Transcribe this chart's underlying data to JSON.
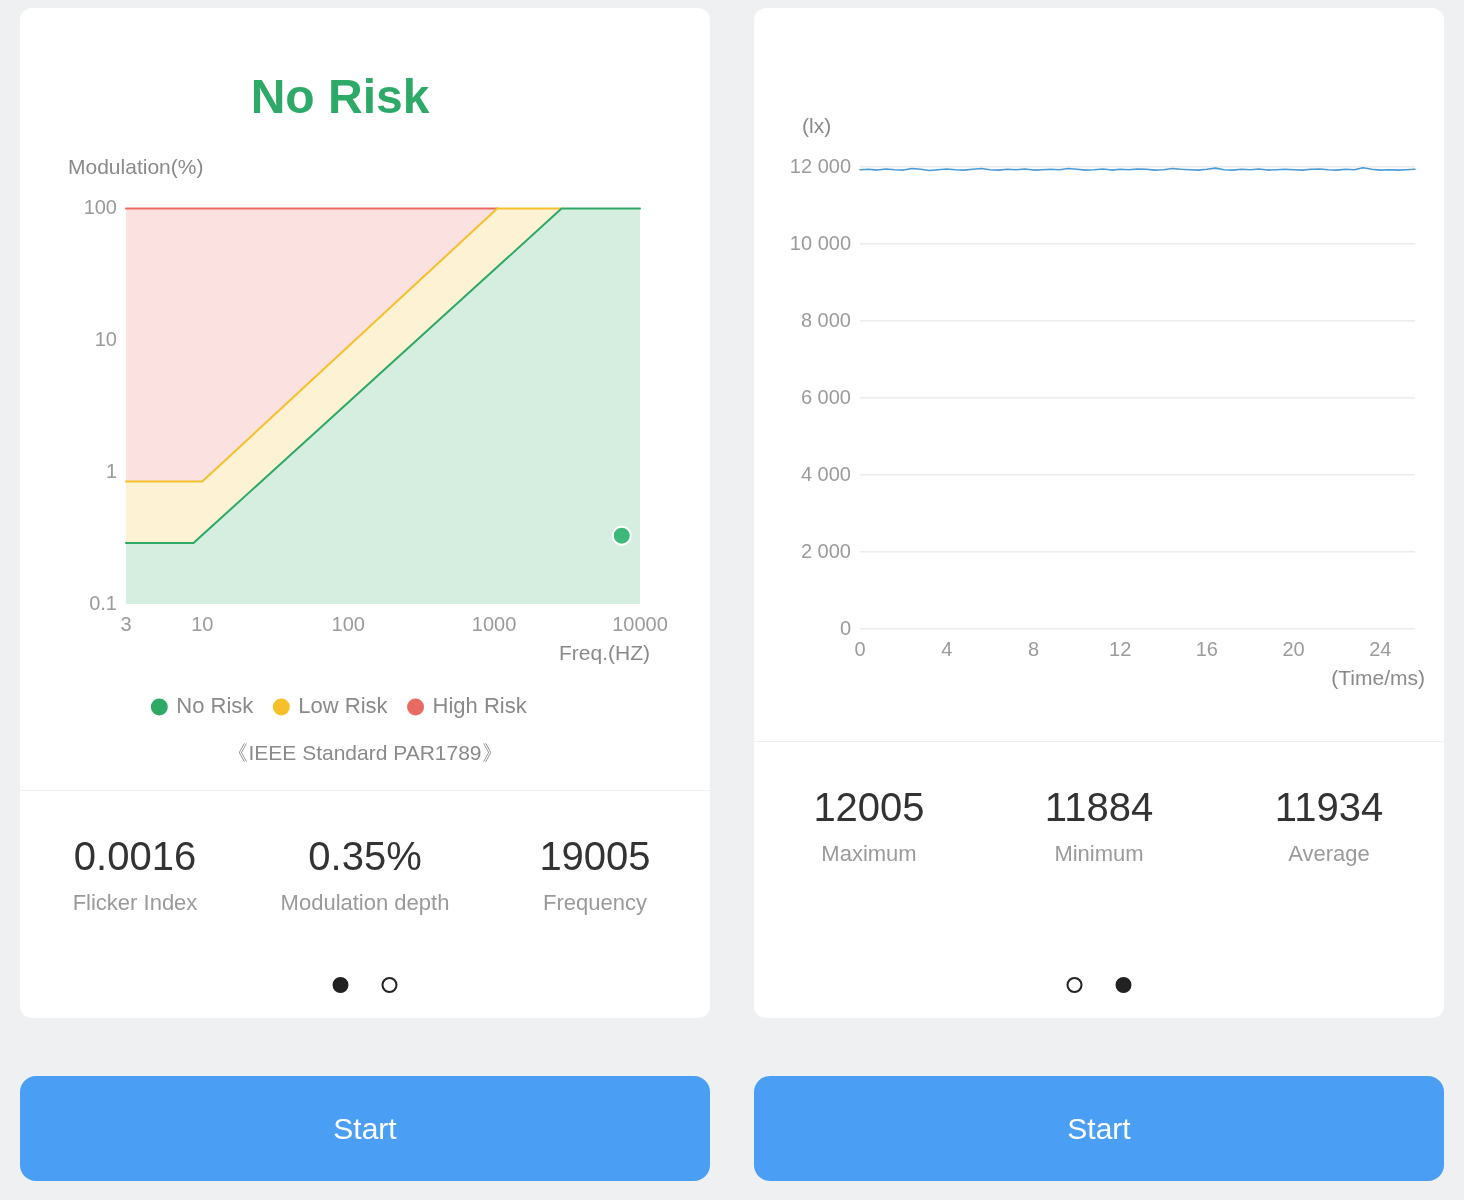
{
  "chart_data": [
    {
      "type": "area",
      "title": "No Risk",
      "xlabel": "Freq.(HZ)",
      "ylabel": "Modulation(%)",
      "annotations": [
        "《IEEE Standard PAR1789》"
      ],
      "series": [
        {
          "name": "No Risk",
          "color": "#2ea866",
          "x": [
            3,
            8.7,
            2900,
            10000
          ],
          "values": [
            0.29,
            0.29,
            100,
            100
          ]
        },
        {
          "name": "Low Risk",
          "color": "#f5c02a",
          "x": [
            3,
            10,
            1050,
            2900
          ],
          "values": [
            0.85,
            0.85,
            100,
            100
          ]
        },
        {
          "name": "High Risk",
          "color": "#e96a62",
          "x": [
            3,
            1050
          ],
          "values": [
            100,
            100
          ]
        },
        {
          "type": "scatter",
          "color": "#3cb878",
          "marker": "circle",
          "x": [
            7500
          ],
          "values": [
            0.33
          ]
        }
      ],
      "xlim": [
        3,
        10000
      ],
      "ylim": [
        0.1,
        100
      ],
      "xticks": [
        3,
        10,
        100,
        1000,
        10000
      ],
      "yticks": [
        0.1,
        1,
        10,
        100
      ],
      "log": "xy",
      "grid": true,
      "legend": "bottom"
    },
    {
      "type": "other",
      "annotations": [
        "0.0016",
        "Flicker Index",
        "0.35%",
        "Modulation depth",
        "19005",
        "Frequency",
        "Start"
      ]
    },
    {
      "type": "line",
      "xlabel": "(Time/ms)",
      "ylabel": "(lx)",
      "series": [
        {
          "color": "#4a9ad8",
          "x": [
            0,
            0.4,
            0.8,
            1.2,
            1.6,
            2,
            2.4,
            2.8,
            3.2,
            3.6,
            4,
            4.4,
            4.8,
            5.2,
            5.6,
            6,
            6.4,
            6.8,
            7.2,
            7.6,
            8,
            8.4,
            8.8,
            9.2,
            9.6,
            10,
            10.4,
            10.8,
            11.2,
            11.6,
            12,
            12.4,
            12.8,
            13.2,
            13.6,
            14,
            14.4,
            14.8,
            15.2,
            15.6,
            16,
            16.4,
            16.8,
            17.2,
            17.6,
            18,
            18.4,
            18.8,
            19.2,
            19.6,
            20,
            20.4,
            20.8,
            21.2,
            21.6,
            22,
            22.4,
            22.8,
            23.2,
            23.6,
            24,
            24.4,
            24.8,
            25.2,
            25.6
          ],
          "values": [
            11930,
            11940,
            11920,
            11950,
            11930,
            11920,
            11960,
            11940,
            11910,
            11930,
            11950,
            11930,
            11920,
            11940,
            11960,
            11930,
            11920,
            11940,
            11930,
            11950,
            11920,
            11930,
            11940,
            11930,
            11960,
            11940,
            11920,
            11930,
            11950,
            11920,
            11940,
            11930,
            11950,
            11940,
            11920,
            11930,
            11960,
            11940,
            11930,
            11920,
            11940,
            11970,
            11930,
            11920,
            11940,
            11930,
            11950,
            11920,
            11930,
            11940,
            11930,
            11920,
            11940,
            11950,
            11930,
            11920,
            11940,
            11930,
            11980,
            11940,
            11920,
            11930,
            11920,
            11930,
            11940
          ]
        }
      ],
      "xlim": [
        0,
        25.6
      ],
      "ylim": [
        0,
        12000
      ],
      "xticks": [
        0,
        4,
        8,
        12,
        16,
        20,
        24
      ],
      "yticks": [
        0,
        {
          "value": 2000,
          "label": "2 000"
        },
        {
          "value": 4000,
          "label": "4 000"
        },
        {
          "value": 6000,
          "label": "6 000"
        },
        {
          "value": 8000,
          "label": "8 000"
        },
        {
          "value": 10000,
          "label": "10 000"
        },
        {
          "value": 12000,
          "label": "12 000"
        }
      ],
      "grid": "y"
    },
    {
      "type": "other",
      "annotations": [
        "12005",
        "Maximum",
        "11884",
        "Minimum",
        "11934",
        "Average",
        "Start"
      ]
    }
  ]
}
